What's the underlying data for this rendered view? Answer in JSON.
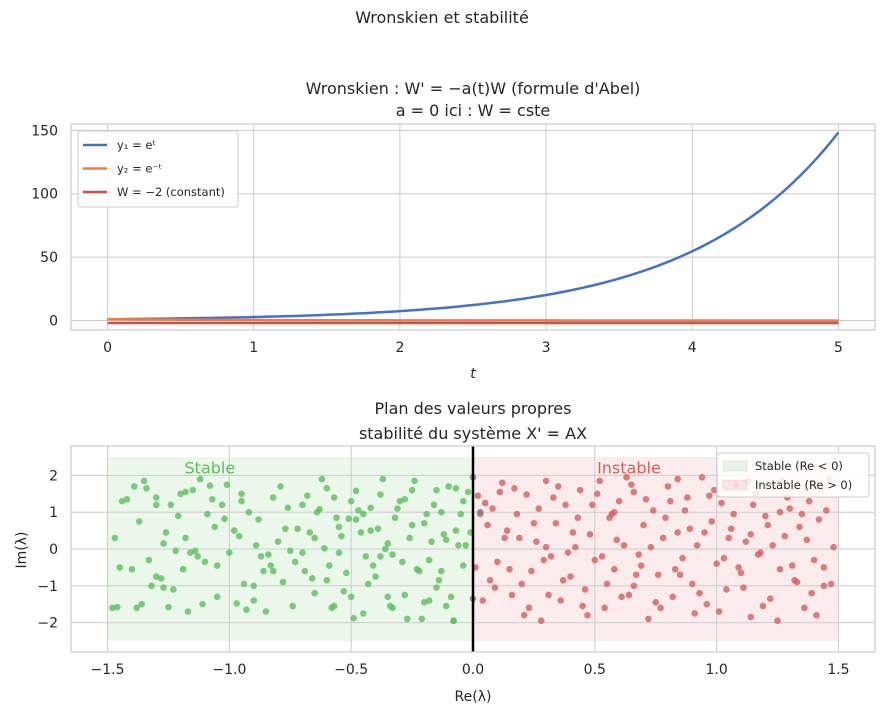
{
  "suptitle": "Wronskien et stabilité",
  "chart_data": [
    {
      "type": "line",
      "title_line1": "Wronskien : W' = −a(t)W (formule d'Abel)",
      "title_line2": "a = 0 ici : W = cste",
      "xlabel": "t",
      "ylabel": "",
      "xlim": [
        -0.25,
        5.25
      ],
      "ylim": [
        -7.5,
        155
      ],
      "xticks": [
        0,
        1,
        2,
        3,
        4,
        5
      ],
      "yticks": [
        0,
        50,
        100,
        150
      ],
      "xtick_labels": [
        "0",
        "1",
        "2",
        "3",
        "4",
        "5"
      ],
      "ytick_labels": [
        "0",
        "50",
        "100",
        "150"
      ],
      "legend_position": "top-left",
      "series": [
        {
          "name": "y₁ = eᵗ",
          "formula": "exp(t)",
          "color": "#4472c4"
        },
        {
          "name": "y₂ = e⁻ᵗ",
          "formula": "exp(-t)",
          "color": "#ed7d45"
        },
        {
          "name": "W = −2 (constant)",
          "formula": "-2",
          "color": "#c9504e"
        }
      ],
      "t_samples": [
        0,
        0.25,
        0.5,
        0.75,
        1,
        1.25,
        1.5,
        1.75,
        2,
        2.25,
        2.5,
        2.75,
        3,
        3.25,
        3.5,
        3.75,
        4,
        4.25,
        4.5,
        4.75,
        5
      ]
    },
    {
      "type": "scatter",
      "title_line1": "Plan des valeurs propres",
      "title_line2": "stabilité du système X' = AX",
      "xlabel": "Re(λ)",
      "ylabel": "Im(λ)",
      "xlim": [
        -1.65,
        1.65
      ],
      "ylim": [
        -2.8,
        2.8
      ],
      "xticks": [
        -1.5,
        -1.0,
        -0.5,
        0.0,
        0.5,
        1.0,
        1.5
      ],
      "yticks": [
        -2,
        -1,
        0,
        1,
        2
      ],
      "xtick_labels": [
        "−1.5",
        "−1.0",
        "−0.5",
        "0.0",
        "0.5",
        "1.0",
        "1.5"
      ],
      "ytick_labels": [
        "−2",
        "−1",
        "0",
        "1",
        "2"
      ],
      "region_stable": {
        "x": [
          -1.5,
          0
        ],
        "y": [
          -2.5,
          2.5
        ],
        "label": "Stable",
        "color": "#5cbf5c"
      },
      "region_unstable": {
        "x": [
          0,
          1.5
        ],
        "y": [
          -2.5,
          2.5
        ],
        "label": "Instable",
        "color": "#d65f5f"
      },
      "legend_position": "top-right",
      "legend": [
        "Stable (Re < 0)",
        "Instable (Re > 0)"
      ],
      "stable_points": [
        [
          -1.48,
          -1.6
        ],
        [
          -1.45,
          -0.5
        ],
        [
          -1.42,
          1.35
        ],
        [
          -1.4,
          -0.55
        ],
        [
          -1.38,
          -1.6
        ],
        [
          -1.37,
          0.75
        ],
        [
          -1.35,
          1.85
        ],
        [
          -1.34,
          1.65
        ],
        [
          -1.32,
          -1.0
        ],
        [
          -1.3,
          1.4
        ],
        [
          -1.3,
          -0.75
        ],
        [
          -1.28,
          -0.8
        ],
        [
          -1.27,
          0.15
        ],
        [
          -1.25,
          -1.58
        ],
        [
          -1.24,
          1.2
        ],
        [
          -1.22,
          -0.05
        ],
        [
          -1.2,
          1.5
        ],
        [
          -1.18,
          1.55
        ],
        [
          -1.17,
          -1.7
        ],
        [
          -1.15,
          1.6
        ],
        [
          -1.12,
          1.9
        ],
        [
          -1.1,
          -0.35
        ],
        [
          -1.08,
          1.72
        ],
        [
          -1.05,
          -1.3
        ],
        [
          -1.03,
          1.2
        ],
        [
          -1.02,
          0.82
        ],
        [
          -1.0,
          -0.1
        ],
        [
          -0.98,
          0.5
        ],
        [
          -0.95,
          1.5
        ],
        [
          -0.93,
          -1.65
        ],
        [
          -0.9,
          -1.4
        ],
        [
          -0.88,
          0.8
        ],
        [
          -0.86,
          -0.6
        ],
        [
          -0.84,
          -0.15
        ],
        [
          -0.82,
          1.4
        ],
        [
          -0.8,
          0.2
        ],
        [
          -0.78,
          -0.9
        ],
        [
          -0.76,
          1.12
        ],
        [
          -0.74,
          -1.55
        ],
        [
          -0.72,
          0.55
        ],
        [
          -0.7,
          -0.1
        ],
        [
          -0.68,
          1.45
        ],
        [
          -0.65,
          -1.2
        ],
        [
          -0.63,
          1.08
        ],
        [
          -0.61,
          0.02
        ],
        [
          -0.59,
          -0.45
        ],
        [
          -0.57,
          1.4
        ],
        [
          -0.55,
          0.6
        ],
        [
          -0.53,
          -1.15
        ],
        [
          -0.51,
          0.82
        ],
        [
          -0.5,
          -1.3
        ],
        [
          -0.48,
          1.58
        ],
        [
          -0.46,
          0.45
        ],
        [
          -0.44,
          -0.2
        ],
        [
          -0.42,
          1.12
        ],
        [
          -0.4,
          -0.75
        ],
        [
          -0.38,
          1.48
        ],
        [
          -0.36,
          0.0
        ],
        [
          -0.34,
          -1.55
        ],
        [
          -0.32,
          0.85
        ],
        [
          -0.3,
          1.3
        ],
        [
          -0.28,
          -1.25
        ],
        [
          -0.26,
          0.3
        ],
        [
          -0.24,
          1.85
        ],
        [
          -0.22,
          -0.6
        ],
        [
          -0.2,
          0.7
        ],
        [
          -0.18,
          -1.4
        ],
        [
          -0.16,
          1.2
        ],
        [
          -0.14,
          -0.85
        ],
        [
          -0.12,
          0.4
        ],
        [
          -0.1,
          1.7
        ],
        [
          -0.08,
          -1.95
        ],
        [
          -0.06,
          0.1
        ],
        [
          -0.04,
          -0.45
        ],
        [
          -0.02,
          1.55
        ],
        [
          -1.46,
          -1.58
        ],
        [
          -1.44,
          1.3
        ],
        [
          -1.33,
          -0.3
        ],
        [
          -1.21,
          0.9
        ],
        [
          -1.14,
          -0.05
        ],
        [
          -1.11,
          -1.5
        ],
        [
          -1.06,
          0.6
        ],
        [
          -0.97,
          -1.48
        ],
        [
          -0.92,
          1.0
        ],
        [
          -0.87,
          -0.2
        ],
        [
          -0.79,
          1.7
        ],
        [
          -0.73,
          -0.35
        ],
        [
          -0.66,
          -0.8
        ],
        [
          -0.62,
          1.9
        ],
        [
          -0.58,
          -1.6
        ],
        [
          -0.54,
          0.35
        ],
        [
          -0.49,
          -1.88
        ],
        [
          -0.45,
          0.95
        ],
        [
          -0.41,
          -0.45
        ],
        [
          -0.37,
          1.9
        ],
        [
          -0.33,
          -0.15
        ],
        [
          -0.29,
          -0.35
        ],
        [
          -0.25,
          1.6
        ],
        [
          -0.21,
          -1.9
        ],
        [
          -0.17,
          0.2
        ],
        [
          -0.13,
          1.0
        ],
        [
          -0.09,
          -1.3
        ],
        [
          -0.05,
          0.95
        ],
        [
          -0.03,
          0.1
        ],
        [
          -1.39,
          1.7
        ],
        [
          -1.26,
          0.45
        ],
        [
          -1.19,
          -0.55
        ],
        [
          -1.13,
          -0.2
        ],
        [
          -1.09,
          0.95
        ],
        [
          -1.01,
          1.75
        ],
        [
          -0.94,
          -0.95
        ],
        [
          -0.89,
          0.1
        ],
        [
          -0.83,
          -0.45
        ],
        [
          -0.77,
          0.55
        ],
        [
          -0.69,
          -0.6
        ],
        [
          -0.64,
          1.0
        ],
        [
          -0.6,
          -0.85
        ],
        [
          -0.56,
          0.85
        ],
        [
          -0.52,
          -0.65
        ],
        [
          -0.47,
          1.05
        ],
        [
          -0.43,
          -0.95
        ],
        [
          -0.39,
          0.55
        ],
        [
          -0.35,
          -1.3
        ],
        [
          -0.31,
          1.1
        ],
        [
          -0.27,
          -1.9
        ],
        [
          -0.23,
          -0.55
        ],
        [
          -0.19,
          0.95
        ],
        [
          -0.15,
          1.6
        ],
        [
          -0.11,
          -1.55
        ],
        [
          -0.07,
          1.65
        ],
        [
          -0.01,
          0.45
        ],
        [
          -1.47,
          0.3
        ],
        [
          -1.36,
          -1.5
        ],
        [
          -1.23,
          -1.1
        ],
        [
          -1.16,
          -0.1
        ],
        [
          -1.07,
          1.35
        ],
        [
          -0.96,
          0.35
        ],
        [
          -0.85,
          -1.7
        ],
        [
          -0.75,
          -0.05
        ],
        [
          -0.67,
          0.45
        ],
        [
          -0.57,
          -1.55
        ],
        [
          -0.48,
          0.8
        ],
        [
          -0.38,
          -0.2
        ],
        [
          -0.28,
          1.35
        ],
        [
          -0.18,
          -0.3
        ],
        [
          -0.08,
          -1.95
        ],
        [
          -0.04,
          1.3
        ],
        [
          -0.15,
          -1.05
        ],
        [
          -0.35,
          0.15
        ],
        [
          -0.7,
          1.2
        ],
        [
          -1.3,
          1.2
        ],
        [
          -0.9,
          -1.0
        ],
        [
          -0.55,
          -0.1
        ],
        [
          -0.25,
          0.65
        ],
        [
          -0.11,
          0.25
        ],
        [
          -1.05,
          -0.45
        ],
        [
          -0.65,
          0.3
        ],
        [
          -0.45,
          -1.75
        ],
        [
          -0.2,
          -1.45
        ],
        [
          -1.18,
          0.3
        ],
        [
          -0.82,
          -0.6
        ],
        [
          -0.42,
          0.5
        ],
        [
          -0.13,
          -0.6
        ],
        [
          -0.6,
          1.65
        ],
        [
          -0.95,
          1.3
        ],
        [
          -1.27,
          -1.05
        ],
        [
          -0.33,
          -1.6
        ],
        [
          -0.07,
          0.5
        ],
        [
          -0.5,
          1.3
        ]
      ],
      "unstable_points": [
        [
          0.02,
          1.45
        ],
        [
          0.04,
          -1.4
        ],
        [
          0.06,
          0.65
        ],
        [
          0.08,
          1.1
        ],
        [
          0.1,
          -0.35
        ],
        [
          0.12,
          1.8
        ],
        [
          0.14,
          0.5
        ],
        [
          0.16,
          -1.25
        ],
        [
          0.18,
          0.95
        ],
        [
          0.2,
          -0.95
        ],
        [
          0.22,
          1.48
        ],
        [
          0.24,
          -0.6
        ],
        [
          0.26,
          0.2
        ],
        [
          0.28,
          -1.95
        ],
        [
          0.3,
          1.85
        ],
        [
          0.32,
          -0.2
        ],
        [
          0.34,
          0.7
        ],
        [
          0.36,
          -1.4
        ],
        [
          0.38,
          1.2
        ],
        [
          0.4,
          -0.75
        ],
        [
          0.42,
          0.05
        ],
        [
          0.44,
          1.6
        ],
        [
          0.46,
          -1.1
        ],
        [
          0.48,
          0.4
        ],
        [
          0.5,
          -0.3
        ],
        [
          0.52,
          1.85
        ],
        [
          0.54,
          -1.6
        ],
        [
          0.56,
          0.85
        ],
        [
          0.58,
          -0.55
        ],
        [
          0.6,
          1.3
        ],
        [
          0.62,
          0.1
        ],
        [
          0.64,
          -1.25
        ],
        [
          0.66,
          1.55
        ],
        [
          0.68,
          -0.15
        ],
        [
          0.7,
          0.65
        ],
        [
          0.72,
          -1.9
        ],
        [
          0.74,
          1.05
        ],
        [
          0.76,
          -0.7
        ],
        [
          0.78,
          0.3
        ],
        [
          0.8,
          1.7
        ],
        [
          0.82,
          -1.3
        ],
        [
          0.84,
          0.45
        ],
        [
          0.86,
          -0.25
        ],
        [
          0.88,
          1.4
        ],
        [
          0.9,
          -0.95
        ],
        [
          0.92,
          0.1
        ],
        [
          0.94,
          1.95
        ],
        [
          0.96,
          -1.5
        ],
        [
          0.98,
          0.75
        ],
        [
          1.0,
          -0.4
        ],
        [
          1.02,
          1.25
        ],
        [
          1.04,
          -1.1
        ],
        [
          1.06,
          0.55
        ],
        [
          1.08,
          1.75
        ],
        [
          1.1,
          -0.65
        ],
        [
          1.12,
          0.2
        ],
        [
          1.14,
          -1.85
        ],
        [
          1.16,
          1.5
        ],
        [
          1.18,
          -0.1
        ],
        [
          1.2,
          0.9
        ],
        [
          1.22,
          -1.35
        ],
        [
          1.24,
          1.65
        ],
        [
          1.26,
          -0.55
        ],
        [
          1.28,
          0.35
        ],
        [
          1.3,
          1.1
        ],
        [
          1.32,
          -0.85
        ],
        [
          1.34,
          0.6
        ],
        [
          1.36,
          -1.6
        ],
        [
          1.38,
          1.3
        ],
        [
          1.4,
          -0.3
        ],
        [
          1.42,
          0.8
        ],
        [
          1.44,
          -1.0
        ],
        [
          1.46,
          1.9
        ],
        [
          1.48,
          0.05
        ],
        [
          0.03,
          0.95
        ],
        [
          0.07,
          -0.85
        ],
        [
          0.11,
          1.55
        ],
        [
          0.15,
          -0.55
        ],
        [
          0.19,
          0.3
        ],
        [
          0.23,
          -1.6
        ],
        [
          0.27,
          1.1
        ],
        [
          0.31,
          -1.25
        ],
        [
          0.35,
          1.7
        ],
        [
          0.39,
          -0.1
        ],
        [
          0.43,
          0.85
        ],
        [
          0.47,
          -1.8
        ],
        [
          0.51,
          1.5
        ],
        [
          0.55,
          -0.95
        ],
        [
          0.59,
          0.25
        ],
        [
          0.63,
          1.95
        ],
        [
          0.67,
          -0.7
        ],
        [
          0.71,
          1.35
        ],
        [
          0.75,
          -1.45
        ],
        [
          0.79,
          0.85
        ],
        [
          0.83,
          -0.55
        ],
        [
          0.87,
          1.05
        ],
        [
          0.91,
          -1.75
        ],
        [
          0.95,
          0.45
        ],
        [
          0.99,
          1.6
        ],
        [
          1.03,
          -0.25
        ],
        [
          1.07,
          0.95
        ],
        [
          1.11,
          -1.05
        ],
        [
          1.15,
          1.2
        ],
        [
          1.19,
          -1.55
        ],
        [
          1.23,
          0.1
        ],
        [
          1.27,
          1.85
        ],
        [
          1.31,
          -0.45
        ],
        [
          1.35,
          0.95
        ],
        [
          1.39,
          -1.2
        ],
        [
          1.43,
          1.65
        ],
        [
          1.47,
          -0.95
        ],
        [
          0.05,
          1.25
        ],
        [
          0.09,
          -1.05
        ],
        [
          0.13,
          0.3
        ],
        [
          0.17,
          1.65
        ],
        [
          0.21,
          -1.8
        ],
        [
          0.25,
          0.7
        ],
        [
          0.29,
          -0.3
        ],
        [
          0.33,
          1.4
        ],
        [
          0.37,
          -0.85
        ],
        [
          0.41,
          0.45
        ],
        [
          0.45,
          -1.55
        ],
        [
          0.49,
          1.2
        ],
        [
          0.53,
          -0.2
        ],
        [
          0.57,
          0.95
        ],
        [
          0.61,
          -1.3
        ],
        [
          0.65,
          1.75
        ],
        [
          0.69,
          -0.45
        ],
        [
          0.73,
          0.05
        ],
        [
          0.77,
          -1.6
        ],
        [
          0.81,
          1.3
        ],
        [
          0.85,
          -0.7
        ],
        [
          0.89,
          0.55
        ],
        [
          0.93,
          -1.2
        ],
        [
          0.97,
          1.45
        ],
        [
          1.01,
          -1.7
        ],
        [
          1.05,
          0.3
        ],
        [
          1.09,
          -0.5
        ],
        [
          1.13,
          1.85
        ],
        [
          1.17,
          -0.15
        ],
        [
          1.21,
          0.65
        ],
        [
          1.25,
          -1.95
        ],
        [
          1.29,
          1.4
        ],
        [
          1.33,
          -0.9
        ],
        [
          1.37,
          0.25
        ],
        [
          1.41,
          -1.8
        ],
        [
          1.45,
          1.05
        ],
        [
          0.01,
          -0.5
        ],
        [
          0.58,
          1.0
        ],
        [
          0.84,
          1.9
        ],
        [
          1.26,
          1.0
        ],
        [
          0.3,
          0.05
        ],
        [
          1.14,
          0.4
        ],
        [
          0.66,
          -1.0
        ],
        [
          1.44,
          -0.5
        ]
      ],
      "boundary_points": [
        [
          0.0,
          1.95
        ],
        [
          0.0,
          -1.35
        ],
        [
          0.03,
          1.0
        ]
      ]
    }
  ]
}
